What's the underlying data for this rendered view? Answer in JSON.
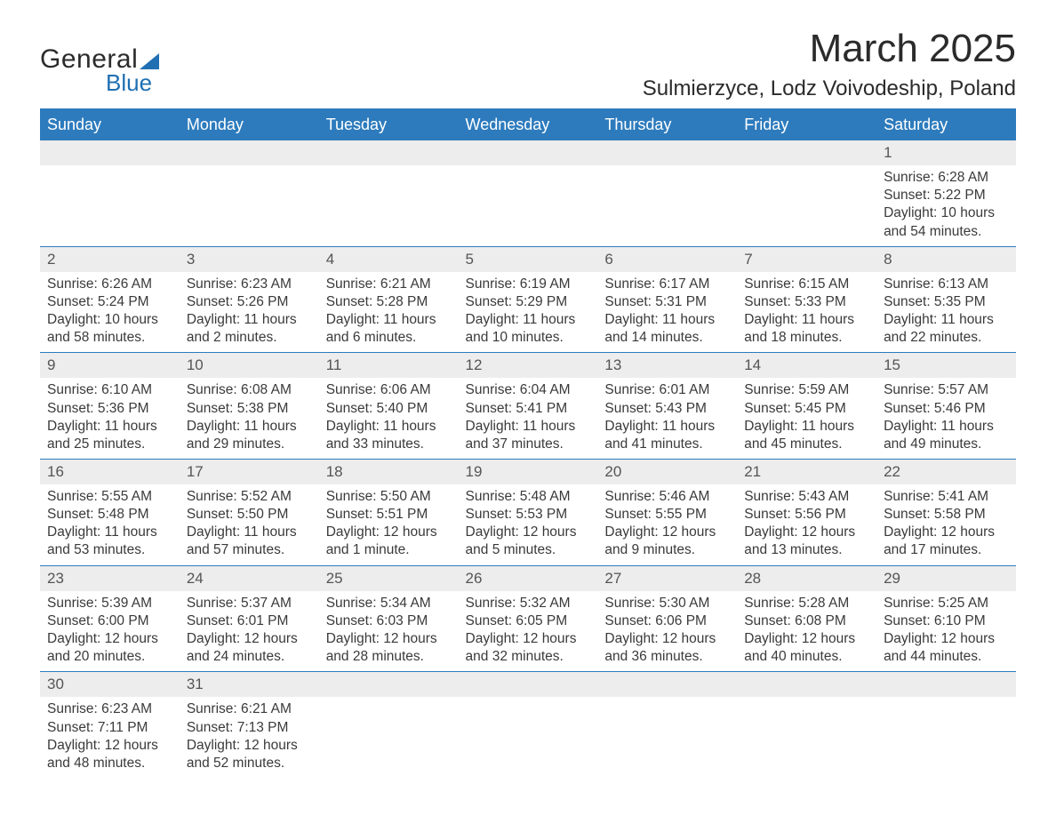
{
  "logo": {
    "text1": "General",
    "text2": "Blue"
  },
  "title": {
    "month": "March 2025",
    "location": "Sulmierzyce, Lodz Voivodeship, Poland"
  },
  "style": {
    "header_bg": "#2d7bbd",
    "header_fg": "#ffffff",
    "daynum_bg": "#ededed",
    "border_color": "#2d7bbd",
    "text_color": "#3a3a3a",
    "month_fontsize": 44,
    "location_fontsize": 24,
    "dayheader_fontsize": 18,
    "cell_fontsize": 15.5
  },
  "columns": [
    "Sunday",
    "Monday",
    "Tuesday",
    "Wednesday",
    "Thursday",
    "Friday",
    "Saturday"
  ],
  "labels": {
    "sunrise": "Sunrise: ",
    "sunset": "Sunset: ",
    "daylight": "Daylight: "
  },
  "weeks": [
    [
      null,
      null,
      null,
      null,
      null,
      null,
      {
        "n": "1",
        "sr": "6:28 AM",
        "ss": "5:22 PM",
        "dl1": "10 hours",
        "dl2": "and 54 minutes."
      }
    ],
    [
      {
        "n": "2",
        "sr": "6:26 AM",
        "ss": "5:24 PM",
        "dl1": "10 hours",
        "dl2": "and 58 minutes."
      },
      {
        "n": "3",
        "sr": "6:23 AM",
        "ss": "5:26 PM",
        "dl1": "11 hours",
        "dl2": "and 2 minutes."
      },
      {
        "n": "4",
        "sr": "6:21 AM",
        "ss": "5:28 PM",
        "dl1": "11 hours",
        "dl2": "and 6 minutes."
      },
      {
        "n": "5",
        "sr": "6:19 AM",
        "ss": "5:29 PM",
        "dl1": "11 hours",
        "dl2": "and 10 minutes."
      },
      {
        "n": "6",
        "sr": "6:17 AM",
        "ss": "5:31 PM",
        "dl1": "11 hours",
        "dl2": "and 14 minutes."
      },
      {
        "n": "7",
        "sr": "6:15 AM",
        "ss": "5:33 PM",
        "dl1": "11 hours",
        "dl2": "and 18 minutes."
      },
      {
        "n": "8",
        "sr": "6:13 AM",
        "ss": "5:35 PM",
        "dl1": "11 hours",
        "dl2": "and 22 minutes."
      }
    ],
    [
      {
        "n": "9",
        "sr": "6:10 AM",
        "ss": "5:36 PM",
        "dl1": "11 hours",
        "dl2": "and 25 minutes."
      },
      {
        "n": "10",
        "sr": "6:08 AM",
        "ss": "5:38 PM",
        "dl1": "11 hours",
        "dl2": "and 29 minutes."
      },
      {
        "n": "11",
        "sr": "6:06 AM",
        "ss": "5:40 PM",
        "dl1": "11 hours",
        "dl2": "and 33 minutes."
      },
      {
        "n": "12",
        "sr": "6:04 AM",
        "ss": "5:41 PM",
        "dl1": "11 hours",
        "dl2": "and 37 minutes."
      },
      {
        "n": "13",
        "sr": "6:01 AM",
        "ss": "5:43 PM",
        "dl1": "11 hours",
        "dl2": "and 41 minutes."
      },
      {
        "n": "14",
        "sr": "5:59 AM",
        "ss": "5:45 PM",
        "dl1": "11 hours",
        "dl2": "and 45 minutes."
      },
      {
        "n": "15",
        "sr": "5:57 AM",
        "ss": "5:46 PM",
        "dl1": "11 hours",
        "dl2": "and 49 minutes."
      }
    ],
    [
      {
        "n": "16",
        "sr": "5:55 AM",
        "ss": "5:48 PM",
        "dl1": "11 hours",
        "dl2": "and 53 minutes."
      },
      {
        "n": "17",
        "sr": "5:52 AM",
        "ss": "5:50 PM",
        "dl1": "11 hours",
        "dl2": "and 57 minutes."
      },
      {
        "n": "18",
        "sr": "5:50 AM",
        "ss": "5:51 PM",
        "dl1": "12 hours",
        "dl2": "and 1 minute."
      },
      {
        "n": "19",
        "sr": "5:48 AM",
        "ss": "5:53 PM",
        "dl1": "12 hours",
        "dl2": "and 5 minutes."
      },
      {
        "n": "20",
        "sr": "5:46 AM",
        "ss": "5:55 PM",
        "dl1": "12 hours",
        "dl2": "and 9 minutes."
      },
      {
        "n": "21",
        "sr": "5:43 AM",
        "ss": "5:56 PM",
        "dl1": "12 hours",
        "dl2": "and 13 minutes."
      },
      {
        "n": "22",
        "sr": "5:41 AM",
        "ss": "5:58 PM",
        "dl1": "12 hours",
        "dl2": "and 17 minutes."
      }
    ],
    [
      {
        "n": "23",
        "sr": "5:39 AM",
        "ss": "6:00 PM",
        "dl1": "12 hours",
        "dl2": "and 20 minutes."
      },
      {
        "n": "24",
        "sr": "5:37 AM",
        "ss": "6:01 PM",
        "dl1": "12 hours",
        "dl2": "and 24 minutes."
      },
      {
        "n": "25",
        "sr": "5:34 AM",
        "ss": "6:03 PM",
        "dl1": "12 hours",
        "dl2": "and 28 minutes."
      },
      {
        "n": "26",
        "sr": "5:32 AM",
        "ss": "6:05 PM",
        "dl1": "12 hours",
        "dl2": "and 32 minutes."
      },
      {
        "n": "27",
        "sr": "5:30 AM",
        "ss": "6:06 PM",
        "dl1": "12 hours",
        "dl2": "and 36 minutes."
      },
      {
        "n": "28",
        "sr": "5:28 AM",
        "ss": "6:08 PM",
        "dl1": "12 hours",
        "dl2": "and 40 minutes."
      },
      {
        "n": "29",
        "sr": "5:25 AM",
        "ss": "6:10 PM",
        "dl1": "12 hours",
        "dl2": "and 44 minutes."
      }
    ],
    [
      {
        "n": "30",
        "sr": "6:23 AM",
        "ss": "7:11 PM",
        "dl1": "12 hours",
        "dl2": "and 48 minutes."
      },
      {
        "n": "31",
        "sr": "6:21 AM",
        "ss": "7:13 PM",
        "dl1": "12 hours",
        "dl2": "and 52 minutes."
      },
      null,
      null,
      null,
      null,
      null
    ]
  ]
}
